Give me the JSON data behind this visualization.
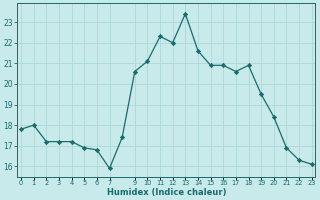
{
  "x": [
    0,
    1,
    2,
    3,
    4,
    5,
    6,
    7,
    8,
    9,
    10,
    11,
    12,
    13,
    14,
    15,
    16,
    17,
    18,
    19,
    20,
    21,
    22,
    23
  ],
  "y": [
    17.8,
    18.0,
    17.2,
    17.2,
    17.2,
    16.9,
    16.8,
    15.9,
    17.4,
    20.6,
    21.1,
    22.3,
    22.0,
    23.4,
    21.6,
    20.9,
    20.9,
    20.6,
    20.9,
    19.5,
    18.4,
    16.9,
    16.3,
    16.1
  ],
  "bg_color": "#c8eaea",
  "line_color": "#1a6b6b",
  "marker_color": "#1a6b6b",
  "grid_color": "#b0d8d8",
  "tick_color": "#1a6b6b",
  "label_color": "#1a6b6b",
  "xlabel": "Humidex (Indice chaleur)",
  "ylim": [
    15.5,
    23.9
  ],
  "yticks": [
    16,
    17,
    18,
    19,
    20,
    21,
    22,
    23
  ],
  "xtick_positions": [
    0,
    1,
    2,
    3,
    4,
    5,
    6,
    7,
    9,
    10,
    11,
    12,
    13,
    14,
    15,
    16,
    17,
    18,
    19,
    20,
    21,
    22,
    23
  ],
  "xtick_labels": [
    "0",
    "1",
    "2",
    "3",
    "4",
    "5",
    "6",
    "7",
    "9",
    "10",
    "11",
    "12",
    "13",
    "14",
    "15",
    "16",
    "17",
    "18",
    "19",
    "20",
    "21",
    "22",
    "23"
  ],
  "xlim": [
    -0.3,
    23.3
  ],
  "grid_minor_color": "#d0e8e8"
}
